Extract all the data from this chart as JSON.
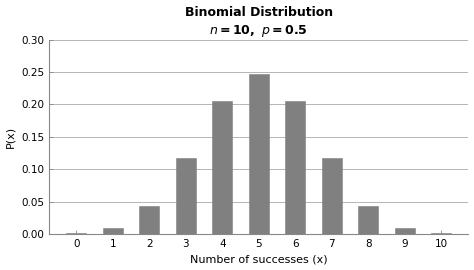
{
  "title_line1": "Binomial Distribution",
  "title_line2": "n = 10, p = 0.5",
  "xlabel": "Number of successes (x)",
  "ylabel": "P(x)",
  "categories": [
    0,
    1,
    2,
    3,
    4,
    5,
    6,
    7,
    8,
    9,
    10
  ],
  "values": [
    0.001,
    0.0098,
    0.0439,
    0.1172,
    0.2051,
    0.2461,
    0.2051,
    0.1172,
    0.0439,
    0.0098,
    0.001
  ],
  "bar_color": "#808080",
  "bar_edge_color": "#808080",
  "background_color": "#ffffff",
  "ylim": [
    0,
    0.3
  ],
  "yticks": [
    0.0,
    0.05,
    0.1,
    0.15,
    0.2,
    0.25,
    0.3
  ],
  "grid_color": "#aaaaaa",
  "title_fontsize": 9,
  "axis_label_fontsize": 8,
  "tick_fontsize": 7.5,
  "bar_width": 0.55
}
